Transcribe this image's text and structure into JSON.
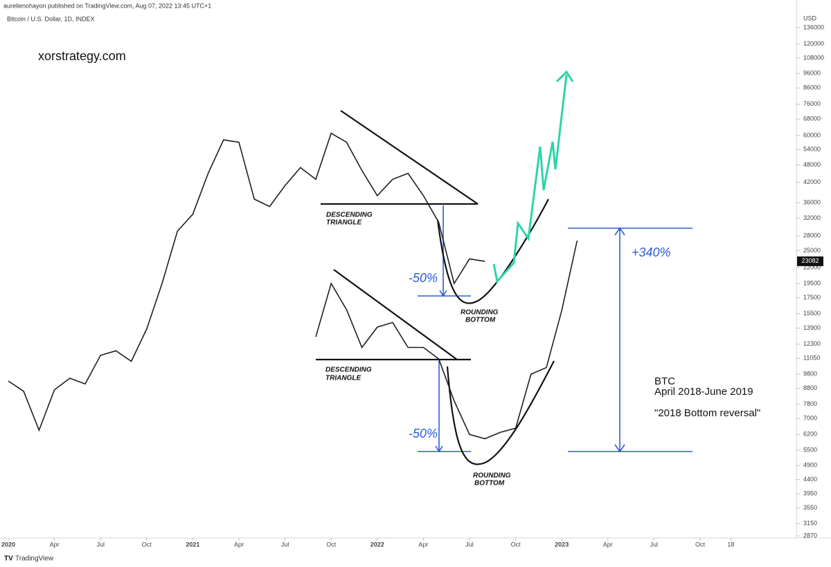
{
  "header": {
    "publisher": "aurelienohayon published on TradingView.com, Aug 07, 2022 13:45 UTC+1",
    "brand": "TradingView"
  },
  "chart_data": {
    "type": "line",
    "title": "Bitcoin / U.S. Dollar, 1D, INDEX",
    "watermark": "xorstrategy.com",
    "y_axis_label": "USD",
    "log_scale": true,
    "ylim": [
      2870,
      136000
    ],
    "yticks": [
      136000,
      120000,
      108000,
      96000,
      86000,
      76000,
      68000,
      60000,
      54000,
      48000,
      42000,
      36000,
      32000,
      28000,
      25000,
      22000,
      19500,
      17500,
      15500,
      13900,
      12300,
      11050,
      9800,
      8800,
      7800,
      7000,
      6200,
      5500,
      4900,
      4400,
      3950,
      3550,
      3150,
      2870
    ],
    "xticks": [
      {
        "value": "2020-01",
        "label": "2020"
      },
      {
        "value": "2020-04",
        "label": "Apr"
      },
      {
        "value": "2020-07",
        "label": "Jul"
      },
      {
        "value": "2020-10",
        "label": "Oct"
      },
      {
        "value": "2021-01",
        "label": "2021"
      },
      {
        "value": "2021-04",
        "label": "Apr"
      },
      {
        "value": "2021-07",
        "label": "Jul"
      },
      {
        "value": "2021-10",
        "label": "Oct"
      },
      {
        "value": "2022-01",
        "label": "2022"
      },
      {
        "value": "2022-04",
        "label": "Apr"
      },
      {
        "value": "2022-07",
        "label": "Jul"
      },
      {
        "value": "2022-10",
        "label": "Oct"
      },
      {
        "value": "2023-01",
        "label": "2023"
      },
      {
        "value": "2023-04",
        "label": "Apr"
      },
      {
        "value": "2023-07",
        "label": "Jul"
      },
      {
        "value": "2023-10",
        "label": "Oct"
      },
      {
        "value": "2023-12",
        "label": "18"
      }
    ],
    "series": [
      {
        "color": "#1e1e1e",
        "x": [
          "2020-01",
          "2020-02",
          "2020-03",
          "2020-04",
          "2020-05",
          "2020-06",
          "2020-07",
          "2020-08",
          "2020-09",
          "2020-10",
          "2020-11",
          "2020-12",
          "2021-01",
          "2021-02",
          "2021-03",
          "2021-04",
          "2021-05",
          "2021-06",
          "2021-07",
          "2021-08",
          "2021-09",
          "2021-10",
          "2021-11",
          "2021-12",
          "2022-01",
          "2022-02",
          "2022-03",
          "2022-04",
          "2022-05",
          "2022-06",
          "2022-07",
          "2022-08"
        ],
        "values": [
          9300,
          8600,
          6400,
          8700,
          9500,
          9100,
          11300,
          11700,
          10800,
          13800,
          19500,
          29000,
          33000,
          45000,
          58000,
          57000,
          37000,
          35000,
          41000,
          47000,
          43000,
          61000,
          57000,
          46000,
          38000,
          43000,
          45000,
          38000,
          31000,
          19500,
          23500,
          23082
        ]
      },
      {
        "color": "#1e1e1e",
        "x": [
          "2021-09",
          "2021-10",
          "2021-11",
          "2021-12",
          "2022-01",
          "2022-02",
          "2022-03",
          "2022-04",
          "2022-05",
          "2022-06",
          "2022-07",
          "2022-08",
          "2022-09",
          "2022-10",
          "2022-11",
          "2022-12",
          "2023-01",
          "2023-02"
        ],
        "values": [
          13000,
          19500,
          16000,
          12000,
          14000,
          14500,
          12000,
          12000,
          11000,
          8000,
          6200,
          6000,
          6300,
          6500,
          9800,
          10300,
          15900,
          27000
        ]
      }
    ],
    "annotations": [
      "DESCENDING",
      "TRIANGLE",
      "-50%",
      "ROUNDING",
      "BOTTOM",
      "DESCENDING",
      "TRIANGLE",
      "-50%",
      "ROUNDING",
      "BOTTOM",
      "+340%",
      "BTC",
      "April 2018-June 2019",
      "\"2018 Bottom reversal\""
    ]
  }
}
